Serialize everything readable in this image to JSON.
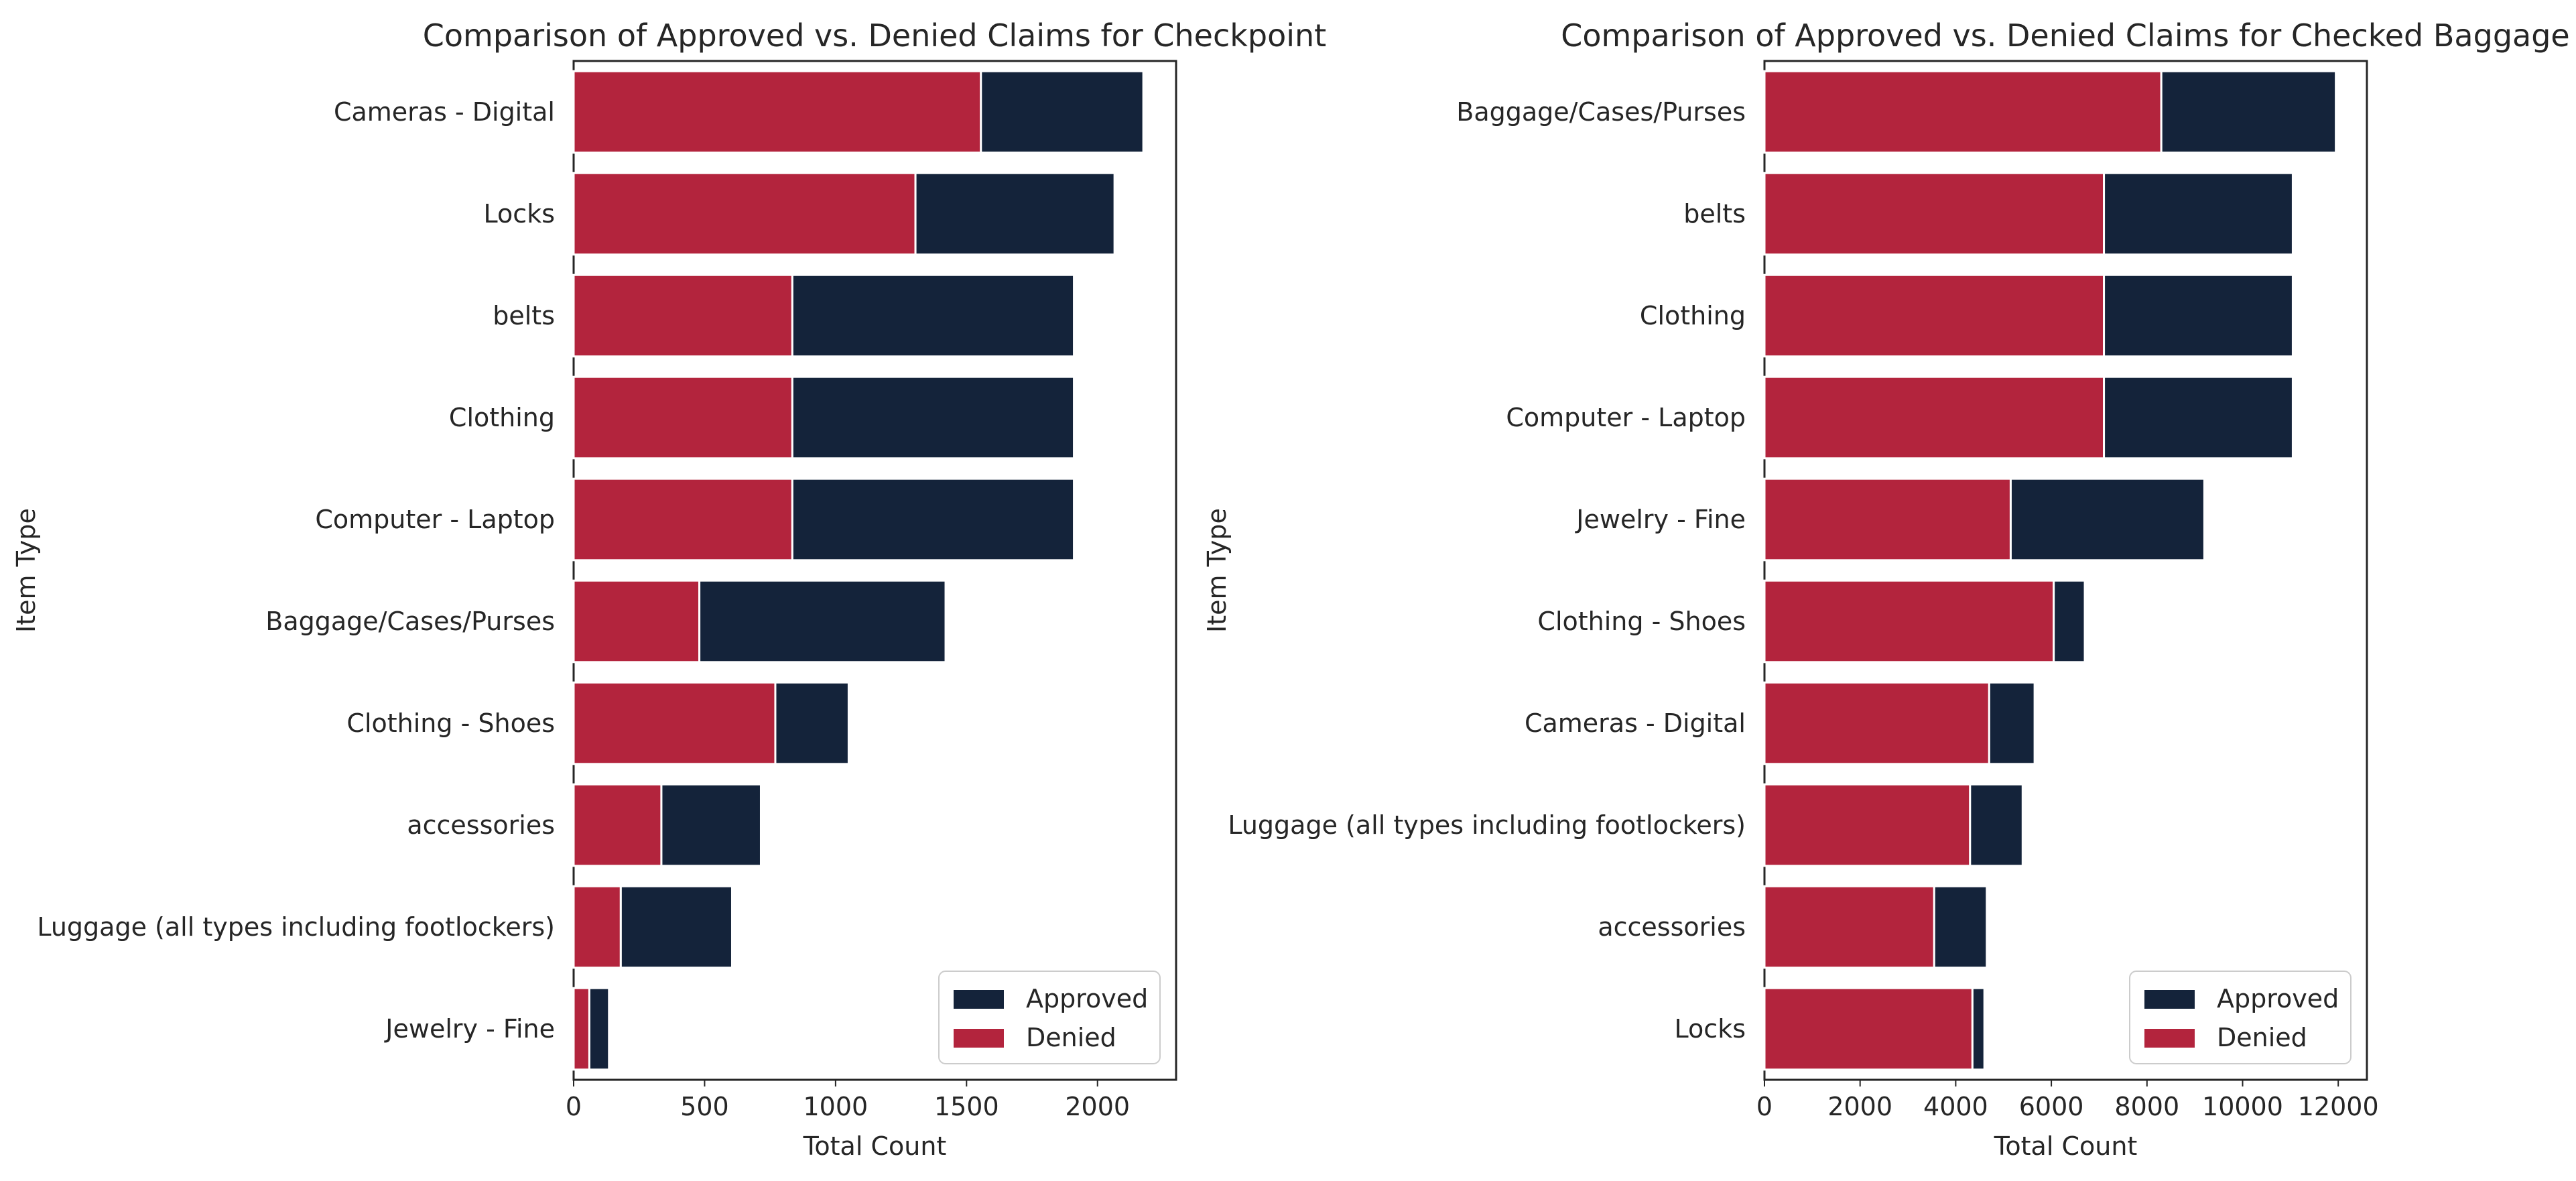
{
  "colors": {
    "approved": "#14233a",
    "denied": "#b3243d",
    "frame": "#262626"
  },
  "chart_data": [
    {
      "type": "bar",
      "orientation": "horizontal",
      "stacked": true,
      "title": "Comparison of Approved vs. Denied Claims for Checkpoint",
      "xlabel": "Total Count",
      "ylabel": "Item Type",
      "xlim": [
        0,
        2300
      ],
      "xticks": [
        0,
        500,
        1000,
        1500,
        2000
      ],
      "grid": false,
      "legend_position": "lower-right",
      "categories": [
        "Cameras - Digital",
        "Locks",
        "belts",
        "Clothing",
        "Computer - Laptop",
        "Baggage/Cases/Purses",
        "Clothing - Shoes",
        "accessories",
        "Luggage (all types including footlockers)",
        "Jewelry - Fine"
      ],
      "series": [
        {
          "name": "Denied",
          "values": [
            1555,
            1305,
            835,
            835,
            835,
            480,
            770,
            335,
            180,
            60
          ]
        },
        {
          "name": "Approved",
          "values": [
            620,
            760,
            1075,
            1075,
            1075,
            940,
            280,
            380,
            425,
            75
          ]
        }
      ],
      "legend": [
        {
          "name": "Approved",
          "color_key": "approved"
        },
        {
          "name": "Denied",
          "color_key": "denied"
        }
      ]
    },
    {
      "type": "bar",
      "orientation": "horizontal",
      "stacked": true,
      "title": "Comparison of Approved vs. Denied Claims for Checked Baggage",
      "xlabel": "Total Count",
      "ylabel": "Item Type",
      "xlim": [
        0,
        12600
      ],
      "xticks": [
        0,
        2000,
        4000,
        6000,
        8000,
        10000,
        12000
      ],
      "grid": false,
      "legend_position": "lower-right",
      "categories": [
        "Baggage/Cases/Purses",
        "belts",
        "Clothing",
        "Computer - Laptop",
        "Jewelry - Fine",
        "Clothing - Shoes",
        "Cameras - Digital",
        "Luggage (all types including footlockers)",
        "accessories",
        "Locks"
      ],
      "series": [
        {
          "name": "Denied",
          "values": [
            8300,
            7100,
            7100,
            7100,
            5150,
            6050,
            4700,
            4300,
            3550,
            4350
          ]
        },
        {
          "name": "Approved",
          "values": [
            3650,
            3950,
            3950,
            3950,
            4050,
            650,
            950,
            1100,
            1100,
            250
          ]
        }
      ],
      "legend": [
        {
          "name": "Approved",
          "color_key": "approved"
        },
        {
          "name": "Denied",
          "color_key": "denied"
        }
      ]
    }
  ]
}
